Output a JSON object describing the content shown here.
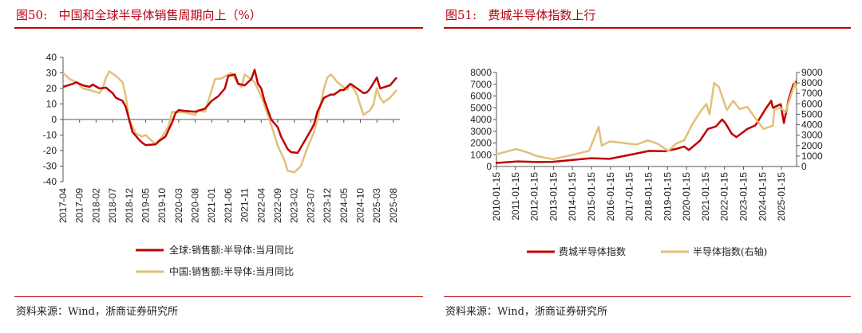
{
  "left": {
    "figure_label": "图50:",
    "title": "中国和全球半导体销售周期向上（%）",
    "source": "资料来源：Wind，浙商证券研究所"
  },
  "right": {
    "figure_label": "图51:",
    "title": "费城半导体指数上行",
    "source": "资料来源：Wind，浙商证券研究所"
  },
  "colors": {
    "red": "#c00000",
    "gold": "#e2c079",
    "title": "#b8000f"
  },
  "chart_data": [
    {
      "type": "line",
      "title": "中国和全球半导体销售周期向上（%）",
      "ylim": [
        -40,
        40
      ],
      "yticks": [
        40,
        30,
        20,
        10,
        0,
        -10,
        -20,
        -30,
        -40
      ],
      "xticks": [
        "2017-04",
        "2017-09",
        "2018-02",
        "2018-07",
        "2018-12",
        "2019-05",
        "2019-10",
        "2020-03",
        "2020-08",
        "2021-01",
        "2021-06",
        "2021-11",
        "2022-04",
        "2022-09",
        "2023-02",
        "2023-07",
        "2023-12",
        "2024-05",
        "2024-10",
        "2025-03",
        "2025-08"
      ],
      "legend_placement": "bottom",
      "series": [
        {
          "name": "全球:销售额:半导体:当月同比",
          "color": "#c00000",
          "points": [
            [
              "2017-04",
              21
            ],
            [
              "2017-07",
              23
            ],
            [
              "2017-08",
              24
            ],
            [
              "2017-10",
              22
            ],
            [
              "2017-12",
              21
            ],
            [
              "2018-01",
              22.5
            ],
            [
              "2018-03",
              20
            ],
            [
              "2018-05",
              20.5
            ],
            [
              "2018-07",
              17
            ],
            [
              "2018-08",
              14
            ],
            [
              "2018-10",
              12
            ],
            [
              "2018-11",
              8
            ],
            [
              "2018-12",
              0
            ],
            [
              "2019-01",
              -8
            ],
            [
              "2019-03",
              -13
            ],
            [
              "2019-04",
              -15
            ],
            [
              "2019-05",
              -16.5
            ],
            [
              "2019-08",
              -16
            ],
            [
              "2019-09",
              -14
            ],
            [
              "2019-11",
              -11
            ],
            [
              "2020-01",
              -2
            ],
            [
              "2020-02",
              4
            ],
            [
              "2020-03",
              6
            ],
            [
              "2020-05",
              5.5
            ],
            [
              "2020-08",
              5
            ],
            [
              "2020-11",
              7
            ],
            [
              "2021-01",
              12
            ],
            [
              "2021-03",
              15
            ],
            [
              "2021-05",
              20
            ],
            [
              "2021-06",
              28
            ],
            [
              "2021-08",
              29
            ],
            [
              "2021-09",
              23
            ],
            [
              "2021-11",
              22
            ],
            [
              "2022-01",
              26
            ],
            [
              "2022-02",
              32
            ],
            [
              "2022-03",
              23
            ],
            [
              "2022-04",
              20
            ],
            [
              "2022-05",
              12
            ],
            [
              "2022-07",
              0
            ],
            [
              "2022-09",
              -5
            ],
            [
              "2022-10",
              -11
            ],
            [
              "2022-12",
              -19
            ],
            [
              "2023-01",
              -21
            ],
            [
              "2023-03",
              -21.5
            ],
            [
              "2023-04",
              -18
            ],
            [
              "2023-07",
              -7
            ],
            [
              "2023-08",
              -3
            ],
            [
              "2023-09",
              5
            ],
            [
              "2023-11",
              14
            ],
            [
              "2024-01",
              16
            ],
            [
              "2024-02",
              16
            ],
            [
              "2024-04",
              19
            ],
            [
              "2024-05",
              19
            ],
            [
              "2024-07",
              23
            ],
            [
              "2024-09",
              20
            ],
            [
              "2024-11",
              17
            ],
            [
              "2024-12",
              17.5
            ],
            [
              "2025-01",
              20
            ],
            [
              "2025-03",
              27
            ],
            [
              "2025-04",
              20
            ],
            [
              "2025-07",
              22
            ],
            [
              "2025-09",
              27
            ]
          ]
        },
        {
          "name": "中国:销售额:半导体:当月同比",
          "color": "#e2c079",
          "points": [
            [
              "2017-04",
              30
            ],
            [
              "2017-06",
              26
            ],
            [
              "2017-08",
              24
            ],
            [
              "2017-10",
              20
            ],
            [
              "2017-12",
              19
            ],
            [
              "2018-03",
              17
            ],
            [
              "2018-04",
              20
            ],
            [
              "2018-05",
              27
            ],
            [
              "2018-06",
              31
            ],
            [
              "2018-08",
              28
            ],
            [
              "2018-10",
              24
            ],
            [
              "2018-11",
              15
            ],
            [
              "2018-12",
              0
            ],
            [
              "2019-02",
              -9
            ],
            [
              "2019-04",
              -11
            ],
            [
              "2019-05",
              -10
            ],
            [
              "2019-07",
              -14
            ],
            [
              "2019-08",
              -16
            ],
            [
              "2019-10",
              -11
            ],
            [
              "2019-12",
              -4
            ],
            [
              "2020-01",
              5
            ],
            [
              "2020-05",
              4.5
            ],
            [
              "2020-08",
              3
            ],
            [
              "2020-09",
              6
            ],
            [
              "2020-11",
              5
            ],
            [
              "2020-12",
              12
            ],
            [
              "2021-02",
              26
            ],
            [
              "2021-04",
              26.5
            ],
            [
              "2021-06",
              29
            ],
            [
              "2021-07",
              30
            ],
            [
              "2021-09",
              23
            ],
            [
              "2021-10",
              21
            ],
            [
              "2021-11",
              29
            ],
            [
              "2022-02",
              24
            ],
            [
              "2022-04",
              15
            ],
            [
              "2022-06",
              3
            ],
            [
              "2022-08",
              -10
            ],
            [
              "2022-09",
              -17
            ],
            [
              "2022-11",
              -26
            ],
            [
              "2022-12",
              -33
            ],
            [
              "2023-02",
              -34
            ],
            [
              "2023-04",
              -30
            ],
            [
              "2023-06",
              -18
            ],
            [
              "2023-08",
              -8
            ],
            [
              "2023-09",
              0
            ],
            [
              "2023-11",
              20
            ],
            [
              "2023-12",
              27
            ],
            [
              "2024-01",
              29
            ],
            [
              "2024-02",
              27
            ],
            [
              "2024-03",
              24
            ],
            [
              "2024-06",
              19
            ],
            [
              "2024-07",
              23
            ],
            [
              "2024-09",
              16
            ],
            [
              "2024-10",
              9
            ],
            [
              "2024-11",
              3
            ],
            [
              "2025-01",
              6
            ],
            [
              "2025-02",
              10
            ],
            [
              "2025-03",
              20
            ],
            [
              "2025-04",
              14
            ],
            [
              "2025-05",
              11
            ],
            [
              "2025-07",
              14
            ],
            [
              "2025-09",
              19
            ]
          ]
        }
      ]
    },
    {
      "type": "line",
      "title": "费城半导体指数上行",
      "ylim": [
        0,
        8000
      ],
      "y2lim": [
        0,
        9000
      ],
      "yticks": [
        8000,
        7000,
        6000,
        5000,
        4000,
        3000,
        2000,
        1000,
        0
      ],
      "y2ticks": [
        9000,
        8000,
        7000,
        6000,
        5000,
        4000,
        3000,
        2000,
        1000,
        0
      ],
      "xticks": [
        "2010-01-15",
        "2011-01-15",
        "2012-01-15",
        "2013-01-15",
        "2014-01-15",
        "2015-01-15",
        "2016-01-15",
        "2017-01-15",
        "2018-01-15",
        "2019-01-15",
        "2020-01-15",
        "2021-01-15",
        "2022-01-15",
        "2023-01-15",
        "2024-01-15",
        "2025-01-15"
      ],
      "legend_placement": "bottom",
      "series": [
        {
          "name": "费城半导体指数",
          "axis": "left",
          "color": "#c00000",
          "points": [
            [
              "2010-01",
              300
            ],
            [
              "2011-03",
              430
            ],
            [
              "2012-03",
              380
            ],
            [
              "2013-01",
              400
            ],
            [
              "2014-01",
              550
            ],
            [
              "2015-01",
              700
            ],
            [
              "2016-01",
              650
            ],
            [
              "2017-02",
              1000
            ],
            [
              "2018-02",
              1330
            ],
            [
              "2018-12",
              1300
            ],
            [
              "2019-07",
              1500
            ],
            [
              "2019-12",
              1700
            ],
            [
              "2020-03",
              1400
            ],
            [
              "2020-10",
              2200
            ],
            [
              "2021-03",
              3200
            ],
            [
              "2021-08",
              3400
            ],
            [
              "2021-12",
              4000
            ],
            [
              "2022-02",
              3700
            ],
            [
              "2022-06",
              2800
            ],
            [
              "2022-09",
              2500
            ],
            [
              "2023-04",
              3200
            ],
            [
              "2023-09",
              3500
            ],
            [
              "2024-03",
              4800
            ],
            [
              "2024-07",
              5600
            ],
            [
              "2024-08",
              5000
            ],
            [
              "2025-01",
              5300
            ],
            [
              "2025-03",
              3700
            ],
            [
              "2025-06",
              5700
            ],
            [
              "2025-09",
              7000
            ],
            [
              "2025-11",
              7250
            ]
          ]
        },
        {
          "name": "半导体指数(右轴)",
          "axis": "right",
          "color": "#e2c079",
          "points": [
            [
              "2010-01",
              1150
            ],
            [
              "2011-02",
              1670
            ],
            [
              "2011-10",
              1300
            ],
            [
              "2012-03",
              1000
            ],
            [
              "2013-01",
              700
            ],
            [
              "2014-01",
              1100
            ],
            [
              "2014-12",
              1500
            ],
            [
              "2015-06",
              3800
            ],
            [
              "2015-08",
              2000
            ],
            [
              "2016-01",
              2400
            ],
            [
              "2016-07",
              2300
            ],
            [
              "2017-06",
              2100
            ],
            [
              "2018-01",
              2500
            ],
            [
              "2018-07",
              2200
            ],
            [
              "2019-02",
              1500
            ],
            [
              "2019-07",
              2200
            ],
            [
              "2019-12",
              2500
            ],
            [
              "2020-05",
              4000
            ],
            [
              "2020-10",
              5200
            ],
            [
              "2021-02",
              6000
            ],
            [
              "2021-04",
              5000
            ],
            [
              "2021-07",
              8000
            ],
            [
              "2021-10",
              7600
            ],
            [
              "2022-03",
              5400
            ],
            [
              "2022-07",
              6300
            ],
            [
              "2022-11",
              5500
            ],
            [
              "2023-04",
              5700
            ],
            [
              "2023-09",
              4600
            ],
            [
              "2024-02",
              3600
            ],
            [
              "2024-08",
              3900
            ],
            [
              "2024-09",
              5500
            ],
            [
              "2025-01",
              5600
            ],
            [
              "2025-04",
              5200
            ],
            [
              "2025-10",
              8000
            ],
            [
              "2025-11",
              7400
            ]
          ]
        }
      ]
    }
  ]
}
